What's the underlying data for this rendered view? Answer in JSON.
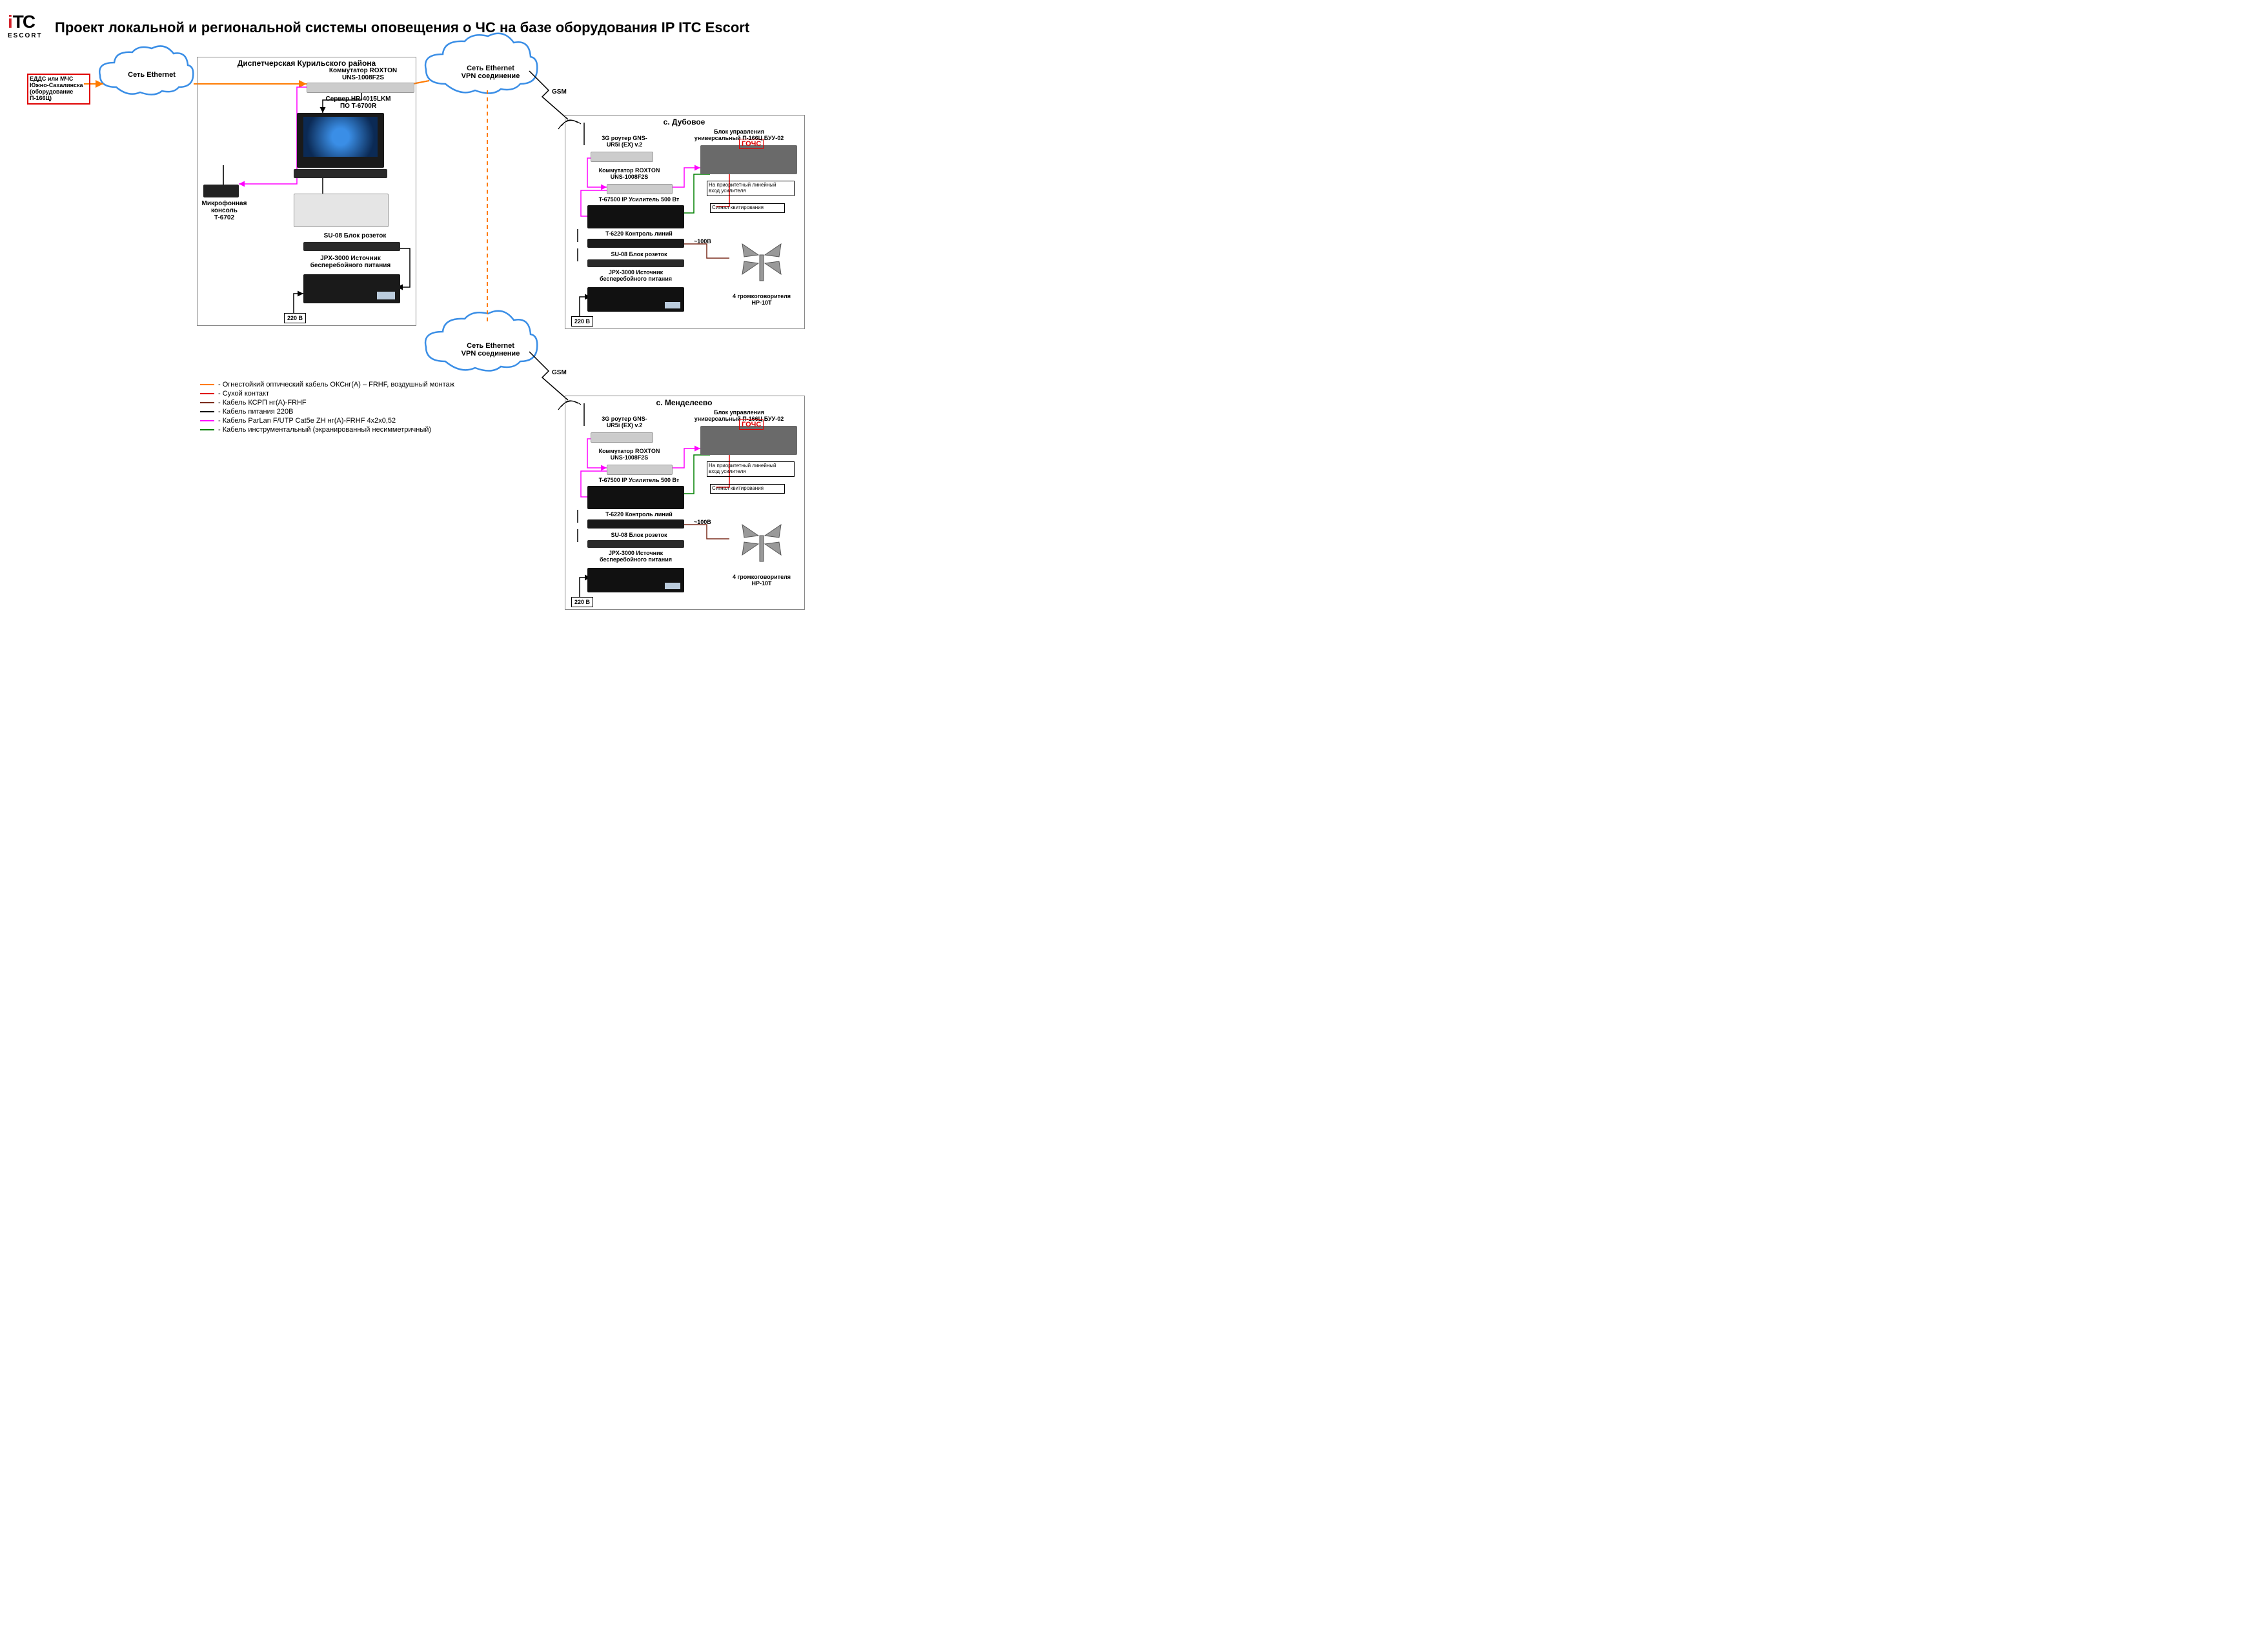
{
  "logo": {
    "red": "i",
    "black": "TC",
    "sub": "ESCORT"
  },
  "title": "Проект локальной и региональной системы оповещения о ЧС на базе оборудования IP ITC Escort",
  "source_box": "ЕДДС или МЧС\nЮжно-Сахалинска\n(оборудование П-166Ц)",
  "clouds": {
    "c1": "Сеть Ethernet",
    "c2": "Сеть Ethernet\nVPN соединение",
    "c3": "Сеть Ethernet\nVPN соединение"
  },
  "gsm": "GSM",
  "dispatch": {
    "title": "Диспетчерская Курильского района",
    "switch": "Коммутатор ROXTON\nUNS-1008F2S",
    "server": "Сервер HR-4015LKM\nПО T-6700R",
    "console": "Микрофонная консоль\nT-6702",
    "sockets": "SU-08 Блок розеток",
    "ups": "JPX-3000 Источник\nбесперебойного питания",
    "volt": "220 В"
  },
  "site": {
    "s1_title": "с. Дубовое",
    "s2_title": "с. Менделеево",
    "router": "3G роутер GNS-\nUR5i (EX) v.2",
    "control": "Блок управления\nуниверсальный П-166Ц БУУ-02",
    "gochs": "ГОЧС",
    "switch": "Коммутатор ROXTON\nUNS-1008F2S",
    "amp": "T-67500 IP Усилитель 500 Вт",
    "line_ctrl": "T-6220 Контроль линий",
    "sockets": "SU-08 Блок розеток",
    "ups": "JPX-3000 Источник\nбесперебойного питания",
    "volt_out": "~100В",
    "speakers": "4 громкоговорителя\nHP-10T",
    "volt": "220 В",
    "note1": "На приоритетный линейный\nвход усилителя",
    "note2": "Сигнал квитирования"
  },
  "legend": {
    "items": [
      {
        "color": "#ff7b00",
        "text": "Огнестойкий оптический кабель  ОКСнг(А) – FRHF, воздушный монтаж"
      },
      {
        "color": "#e00000",
        "text": "Сухой контакт"
      },
      {
        "color": "#7a2c1b",
        "text": "Кабель КСРП нг(А)-FRHF"
      },
      {
        "color": "#000000",
        "text": "Кабель питания 220В"
      },
      {
        "color": "#ff00ff",
        "text": "Кабель ParLan F/UTP Cat5e ZH нг(А)-FRHF 4х2х0,52"
      },
      {
        "color": "#008000",
        "text": "Кабель инструментальный (экранированный несимметричный)"
      }
    ]
  },
  "colors": {
    "orange": "#ff7b00",
    "red": "#e00000",
    "brown": "#7a2c1b",
    "black": "#000000",
    "magenta": "#ff00ff",
    "green": "#008000",
    "cloud": "#3a8ee6"
  }
}
